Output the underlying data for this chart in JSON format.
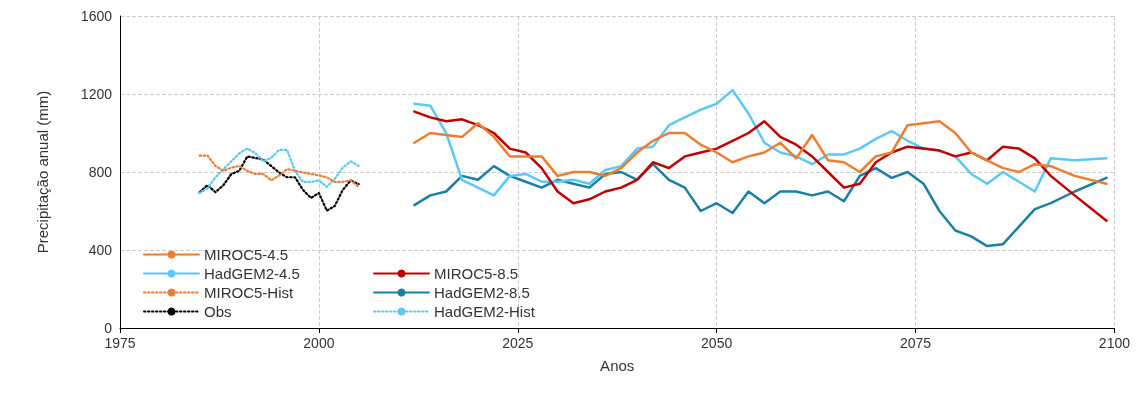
{
  "chart_data": {
    "type": "line",
    "xlabel": "Anos",
    "ylabel": "Precipitação anual (mm)",
    "xlim": [
      1975,
      2100
    ],
    "xticks": [
      1975,
      2000,
      2025,
      2050,
      2075,
      2100
    ],
    "ylim": [
      0,
      1600
    ],
    "yticks": [
      0,
      400,
      800,
      1200,
      1600
    ],
    "grid": true,
    "legend": "bottom left",
    "marker": "none",
    "x": [
      2012,
      2014,
      2016,
      2018,
      2020,
      2022,
      2024,
      2026,
      2028,
      2030,
      2032,
      2034,
      2036,
      2038,
      2040,
      2042,
      2044,
      2046,
      2048,
      2050,
      2052,
      2054,
      2056,
      2058,
      2060,
      2062,
      2064,
      2066,
      2068,
      2070,
      2072,
      2074,
      2076,
      2078,
      2080,
      2082,
      2084,
      2086,
      2088,
      2090,
      2092,
      2095,
      2099
    ],
    "series": [
      {
        "name": "MIROC5-4.5",
        "color": "#ed7d31",
        "line_style": "solid",
        "values": [
          950,
          1000,
          990,
          980,
          1050,
          980,
          880,
          880,
          880,
          780,
          800,
          800,
          780,
          820,
          900,
          960,
          1000,
          1000,
          940,
          900,
          850,
          880,
          900,
          950,
          870,
          990,
          860,
          850,
          800,
          880,
          900,
          1040,
          1050,
          1060,
          1000,
          900,
          860,
          820,
          800,
          840,
          830,
          780,
          740
        ]
      },
      {
        "name": "MIROC5-8.5",
        "color": "#c00000",
        "line_style": "solid",
        "values": [
          1110,
          1080,
          1060,
          1070,
          1040,
          1000,
          920,
          900,
          820,
          700,
          640,
          660,
          700,
          720,
          760,
          850,
          820,
          880,
          900,
          920,
          960,
          1000,
          1060,
          980,
          940,
          880,
          800,
          720,
          740,
          850,
          900,
          930,
          920,
          910,
          880,
          900,
          860,
          930,
          920,
          870,
          780,
          680,
          550
        ]
      },
      {
        "name": "HadGEM2-4.5",
        "color": "#5bc8f5",
        "line_style": "solid",
        "values": [
          1150,
          1140,
          1000,
          760,
          720,
          680,
          780,
          790,
          750,
          750,
          760,
          740,
          810,
          830,
          920,
          930,
          1040,
          1080,
          1120,
          1150,
          1220,
          1100,
          950,
          900,
          880,
          840,
          890,
          890,
          920,
          970,
          1010,
          960,
          920,
          910,
          880,
          790,
          740,
          800,
          750,
          700,
          870,
          860,
          870
        ]
      },
      {
        "name": "HadGEM2-8.5",
        "color": "#1b7fa6",
        "line_style": "solid",
        "values": [
          630,
          680,
          700,
          780,
          760,
          830,
          780,
          750,
          720,
          760,
          740,
          720,
          790,
          800,
          760,
          840,
          760,
          720,
          600,
          640,
          590,
          700,
          640,
          700,
          700,
          680,
          700,
          650,
          780,
          820,
          770,
          800,
          740,
          600,
          500,
          470,
          420,
          430,
          520,
          610,
          640,
          700,
          770
        ]
      },
      {
        "name": "MIROC5-Hist",
        "color": "#ed7d31",
        "line_style": "dotted",
        "x": [
          1985,
          1986,
          1987,
          1988,
          1989,
          1990,
          1991,
          1992,
          1993,
          1994,
          1995,
          1996,
          1997,
          1998,
          1999,
          2000,
          2001,
          2002,
          2003,
          2004,
          2005
        ],
        "values": [
          884,
          884,
          831,
          806,
          823,
          831,
          806,
          790,
          790,
          757,
          782,
          815,
          806,
          798,
          790,
          782,
          773,
          749,
          749,
          757,
          724
        ]
      },
      {
        "name": "HadGEM2-Hist",
        "color": "#5bc8f5",
        "line_style": "dotted",
        "x": [
          1985,
          1986,
          1987,
          1988,
          1989,
          1990,
          1991,
          1992,
          1993,
          1994,
          1995,
          1996,
          1997,
          1998,
          1999,
          2000,
          2001,
          2002,
          2003,
          2004,
          2005
        ],
        "values": [
          692,
          716,
          773,
          815,
          855,
          896,
          921,
          896,
          855,
          872,
          913,
          913,
          806,
          749,
          749,
          757,
          724,
          765,
          823,
          855,
          831
        ]
      },
      {
        "name": "Obs",
        "color": "#000000",
        "line_style": "dotted",
        "x": [
          1985,
          1986,
          1987,
          1988,
          1989,
          1990,
          1991,
          1992,
          1993,
          1994,
          1995,
          1996,
          1997,
          1998,
          1999,
          2000,
          2001,
          2002,
          2003,
          2004,
          2005
        ],
        "values": [
          696,
          733,
          696,
          733,
          790,
          806,
          880,
          872,
          864,
          831,
          798,
          773,
          773,
          708,
          667,
          692,
          602,
          626,
          708,
          757,
          738
        ]
      }
    ]
  }
}
